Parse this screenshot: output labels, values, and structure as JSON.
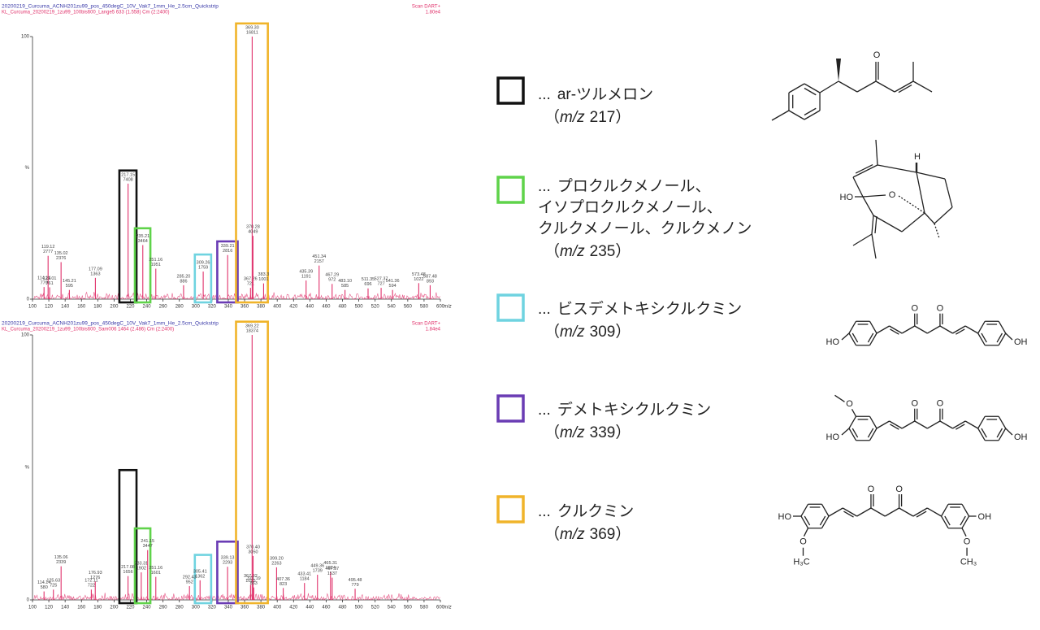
{
  "chart_data": [
    {
      "type": "spectrum",
      "title": "20200219_Curcuma_ACNH201zu99_pos_450degC_10V_Vak7_1mm_He_2.5cm_Quickstrip",
      "subtitle": "KL_Curcuma_20200219_1zu99_100bis600_Lange5 633 (1.558) Cm (2:2400)",
      "scan": "Scan DART+",
      "scale": "1.80e4",
      "color": "#e0306a",
      "xlabel": "m/z",
      "ylabel": "%",
      "xlim": [
        100,
        600
      ],
      "xticks": [
        100,
        120,
        140,
        160,
        180,
        200,
        220,
        240,
        260,
        280,
        300,
        320,
        340,
        360,
        380,
        400,
        420,
        440,
        460,
        480,
        500,
        520,
        540,
        560,
        580,
        600
      ],
      "ylim": [
        0,
        100
      ],
      "yticks": [
        0,
        100
      ],
      "x": [
        114.14,
        119.12,
        121.01,
        135.02,
        145.21,
        177.09,
        217.15,
        235.21,
        251.16,
        285.2,
        309.26,
        339.21,
        367.26,
        369.3,
        370.28,
        383.3,
        435.39,
        451.34,
        467.29,
        483.1,
        511.35,
        527.37,
        541.36,
        573.48,
        587.48
      ],
      "values": [
        4.6,
        16.5,
        4.5,
        14.1,
        3.5,
        8.1,
        44,
        20.6,
        11.6,
        5.3,
        10.5,
        16.8,
        4.3,
        100,
        24.1,
        6,
        7.1,
        12.8,
        5.8,
        3.5,
        4.1,
        4.3,
        3.5,
        6.1,
        5.3
      ],
      "peak_labels": [
        {
          "mz": "114.14",
          "count": "779"
        },
        {
          "mz": "119.12",
          "count": "2777"
        },
        {
          "mz": "121.01",
          "count": "761"
        },
        {
          "mz": "135.02",
          "count": "2376"
        },
        {
          "mz": "145.21",
          "count": "595"
        },
        {
          "mz": "177.09",
          "count": "1363"
        },
        {
          "mz": "217.15",
          "count": "7408"
        },
        {
          "mz": "235.21",
          "count": "3464"
        },
        {
          "mz": "251.16",
          "count": "1951"
        },
        {
          "mz": "285.20",
          "count": "886"
        },
        {
          "mz": "309.26",
          "count": "1759"
        },
        {
          "mz": "339.21",
          "count": "2816"
        },
        {
          "mz": "367.26",
          "count": "721"
        },
        {
          "mz": "369.30",
          "count": "16811"
        },
        {
          "mz": "370.28",
          "count": "4049"
        },
        {
          "mz": "383.3",
          "count": "1001"
        },
        {
          "mz": "435.39",
          "count": "1191"
        },
        {
          "mz": "451.34",
          "count": "2157"
        },
        {
          "mz": "467.29",
          "count": "972"
        },
        {
          "mz": "483.10",
          "count": "585"
        },
        {
          "mz": "511.35",
          "count": "696"
        },
        {
          "mz": "527.37",
          "count": "727"
        },
        {
          "mz": "541.36",
          "count": "594"
        },
        {
          "mz": "573.48",
          "count": "1022"
        },
        {
          "mz": "587.48",
          "count": "893"
        }
      ]
    },
    {
      "type": "spectrum",
      "title": "20200219_Curcuma_ACNH201zu99_pos_450degC_10V_Vak7_1mm_He_2.5cm_Quickstrip",
      "subtitle": "KL_Curcuma_20200219_1zu99_100bis600_Sam006 1464 (2.486) Cm (2:2400)",
      "scan": "Scan DART+",
      "scale": "1.84e4",
      "color": "#e0306a",
      "xlabel": "m/z",
      "ylabel": "%",
      "xlim": [
        100,
        600
      ],
      "xticks": [
        100,
        120,
        140,
        160,
        180,
        200,
        220,
        240,
        260,
        280,
        300,
        320,
        340,
        360,
        380,
        400,
        420,
        440,
        460,
        480,
        500,
        520,
        540,
        560,
        580,
        600
      ],
      "ylim": [
        0,
        100
      ],
      "yticks": [
        0,
        100
      ],
      "x": [
        114.14,
        125.63,
        135.06,
        172.11,
        176.93,
        217.08,
        233.31,
        241.15,
        251.16,
        292.43,
        305.41,
        339.13,
        367.32,
        369.22,
        370.4,
        371.19,
        399.2,
        407.36,
        433.41,
        449.36,
        465.31,
        467.37,
        495.48
      ],
      "values": [
        3.2,
        3.9,
        12.7,
        3.9,
        6.9,
        9,
        10.4,
        18.8,
        8.7,
        5.2,
        7.4,
        12.5,
        5.7,
        100,
        16.6,
        4.7,
        12.3,
        4.5,
        6.4,
        9.5,
        10.5,
        8.4,
        4.2
      ],
      "peak_labels": [
        {
          "mz": "114.14",
          "count": "580"
        },
        {
          "mz": "125.63",
          "count": "725"
        },
        {
          "mz": "135.06",
          "count": "2339"
        },
        {
          "mz": "172.11",
          "count": "722"
        },
        {
          "mz": "176.93",
          "count": "1276"
        },
        {
          "mz": "217.08",
          "count": "1656"
        },
        {
          "mz": "233.31",
          "count": "1902"
        },
        {
          "mz": "241.15",
          "count": "3447"
        },
        {
          "mz": "251.16",
          "count": "1601"
        },
        {
          "mz": "292.43",
          "count": "952"
        },
        {
          "mz": "305.41",
          "count": "1362"
        },
        {
          "mz": "339.13",
          "count": "2293"
        },
        {
          "mz": "367.32",
          "count": "1050"
        },
        {
          "mz": "369.22",
          "count": "18374"
        },
        {
          "mz": "370.40",
          "count": "3050"
        },
        {
          "mz": "371.19",
          "count": "863"
        },
        {
          "mz": "399.20",
          "count": "2263"
        },
        {
          "mz": "407.36",
          "count": "823"
        },
        {
          "mz": "433.41",
          "count": "1184"
        },
        {
          "mz": "449.36",
          "count": "1739"
        },
        {
          "mz": "465.31",
          "count": "1924"
        },
        {
          "mz": "467.37",
          "count": "1537"
        },
        {
          "mz": "495.48",
          "count": "779"
        }
      ]
    }
  ],
  "legend": {
    "prefix": "...",
    "mz_open": "（",
    "mz_unit": "m/z",
    "mz_close": "）",
    "items": [
      {
        "color": "#111111",
        "lines": [
          "ar-ツルメロン"
        ],
        "mz": 217
      },
      {
        "color": "#5fd34a",
        "lines": [
          "プロクルクメノール、",
          "イソプロクルクメノール、",
          "クルクメノール、クルクメノン"
        ],
        "mz": 235
      },
      {
        "color": "#6fd3e0",
        "lines": [
          "ビスデメトキシクルクミン"
        ],
        "mz": 309
      },
      {
        "color": "#6a3cb4",
        "lines": [
          "デメトキシクルクミン"
        ],
        "mz": 339
      },
      {
        "color": "#f0b42a",
        "lines": [
          "クルクミン"
        ],
        "mz": 369
      }
    ]
  },
  "structures": [
    {
      "atoms": [
        "O"
      ]
    },
    {
      "atoms": [
        "H",
        "HO",
        "O"
      ]
    },
    {
      "atoms": [
        "O",
        "O",
        "HO",
        "OH"
      ]
    },
    {
      "atoms": [
        "O",
        "O",
        "O",
        "HO",
        "OH"
      ]
    },
    {
      "atoms": [
        "O",
        "O",
        "HO",
        "O",
        "H₃C",
        "OH",
        "O",
        "CH₃"
      ]
    }
  ]
}
